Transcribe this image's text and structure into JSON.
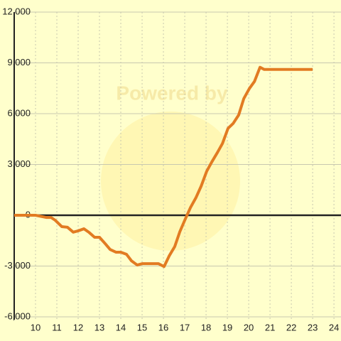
{
  "chart_data": {
    "type": "line",
    "watermark": "Powered by",
    "x": [
      9,
      10,
      10.5,
      10.73,
      10.93,
      11.23,
      11.5,
      11.77,
      12,
      12.27,
      12.5,
      12.77,
      13,
      13.27,
      13.5,
      13.77,
      14,
      14.27,
      14.5,
      14.77,
      15,
      15.27,
      15.5,
      15.77,
      16.03,
      16.27,
      16.53,
      16.77,
      17.03,
      17.27,
      17.53,
      17.77,
      18.03,
      18.27,
      18.53,
      18.77,
      19.03,
      19.27,
      19.53,
      19.77,
      20.03,
      20.27,
      20.53,
      20.73,
      21,
      23
    ],
    "series": [
      {
        "color": "#e27b22",
        "values": [
          0,
          0,
          -130,
          -130,
          -300,
          -670,
          -710,
          -1000,
          -920,
          -800,
          -1000,
          -1300,
          -1300,
          -1680,
          -2020,
          -2180,
          -2180,
          -2310,
          -2690,
          -2940,
          -2860,
          -2860,
          -2860,
          -2860,
          -3030,
          -2400,
          -1850,
          -970,
          -210,
          460,
          1050,
          1720,
          2600,
          3150,
          3700,
          4240,
          5130,
          5420,
          5920,
          6890,
          7480,
          7900,
          8740,
          8610,
          8610,
          8610
        ]
      }
    ],
    "xlim": [
      9,
      24.33
    ],
    "xticks": [
      10,
      11,
      12,
      13,
      14,
      15,
      16,
      17,
      18,
      19,
      20,
      21,
      22,
      23,
      24
    ],
    "ylim": [
      -6000,
      12000
    ],
    "yticks": [
      {
        "value": -6000,
        "label": "-6,000"
      },
      {
        "value": -3000,
        "label": "-3,000"
      },
      0,
      {
        "value": 3000,
        "label": "3,000"
      },
      {
        "value": 6000,
        "label": "6,000"
      },
      {
        "value": 9000,
        "label": "9,000"
      },
      {
        "value": 12000,
        "label": "12,000"
      }
    ],
    "grid": true
  }
}
